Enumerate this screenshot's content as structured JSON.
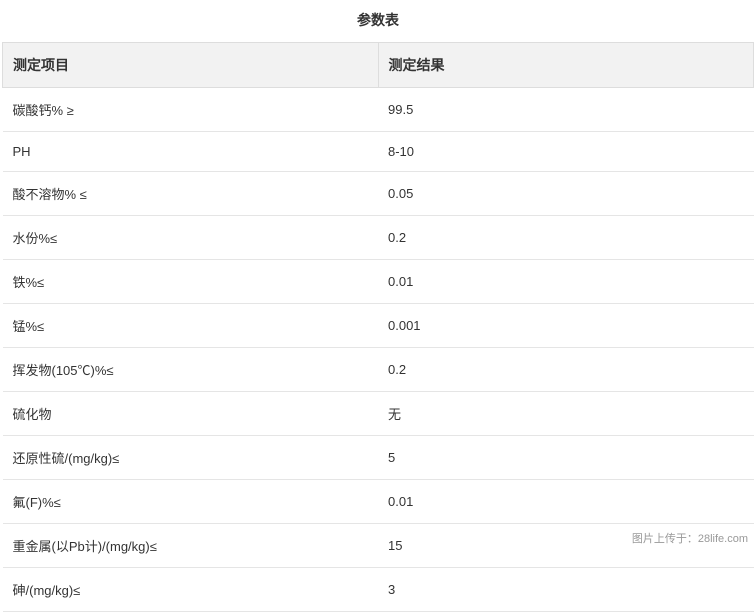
{
  "title": "参数表",
  "columns": [
    "测定项目",
    "测定结果"
  ],
  "rows": [
    [
      "碳酸钙% ≥",
      "99.5"
    ],
    [
      "PH",
      "8-10"
    ],
    [
      "酸不溶物% ≤",
      "0.05"
    ],
    [
      "水份%≤",
      "0.2"
    ],
    [
      "铁%≤",
      "0.01"
    ],
    [
      "锰%≤",
      "0.001"
    ],
    [
      "挥发物(105℃)%≤",
      "0.2"
    ],
    [
      "硫化物",
      "无"
    ],
    [
      "还原性硫/(mg/kg)≤",
      "5"
    ],
    [
      "氟(F)%≤",
      "0.01"
    ],
    [
      "重金属(以Pb计)/(mg/kg)≤",
      "15"
    ],
    [
      "砷/(mg/kg)≤",
      "3"
    ]
  ],
  "watermark": "图片上传于：28life.com",
  "styles": {
    "background_color": "#ffffff",
    "header_bg": "#f2f2f2",
    "border_color": "#dddddd",
    "row_border_color": "#e5e5e5",
    "text_color": "#333333",
    "watermark_color": "#999999",
    "title_fontsize": 14,
    "header_fontsize": 14,
    "cell_fontsize": 13,
    "watermark_fontsize": 11
  }
}
